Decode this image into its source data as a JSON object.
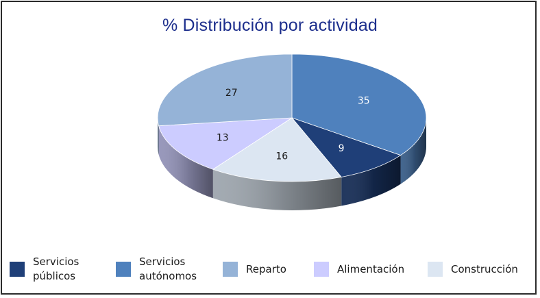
{
  "chart_data": {
    "type": "pie",
    "title": "% Distribución por actividad",
    "categories": [
      "Servicios públicos",
      "Servicios autónomos",
      "Reparto",
      "Alimentación",
      "Construcción"
    ],
    "values": [
      9,
      35,
      27,
      13,
      16
    ],
    "colors": [
      "#1f3f78",
      "#4f81bd",
      "#95b3d7",
      "#ccccff",
      "#dce6f2"
    ],
    "legend_position": "bottom",
    "slices": [
      {
        "name": "Servicios autónomos",
        "value": 35,
        "color": "#4f81bd"
      },
      {
        "name": "Servicios públicos",
        "value": 9,
        "color": "#1f3f78"
      },
      {
        "name": "Construcción",
        "value": 16,
        "color": "#dce6f2"
      },
      {
        "name": "Alimentación",
        "value": 13,
        "color": "#ccccff"
      },
      {
        "name": "Reparto",
        "value": 27,
        "color": "#95b3d7"
      }
    ]
  },
  "legend": [
    {
      "label": "Servicios\npúblicos",
      "color": "#1f3f78"
    },
    {
      "label": "Servicios\nautónomos",
      "color": "#4f81bd"
    },
    {
      "label": "Reparto",
      "color": "#95b3d7"
    },
    {
      "label": "Alimentación",
      "color": "#ccccff"
    },
    {
      "label": "Construcción",
      "color": "#dce6f2"
    }
  ]
}
